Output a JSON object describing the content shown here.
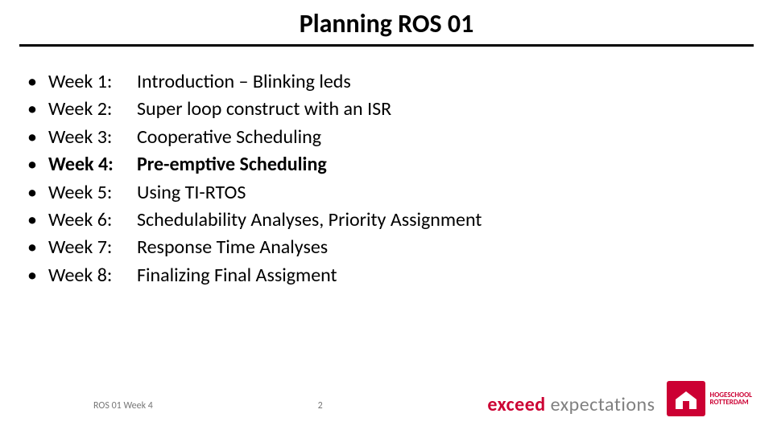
{
  "title": "Planning ROS 01",
  "weeks": [
    {
      "label": "Week 1:",
      "desc": "Introduction – Blinking leds",
      "bold": false
    },
    {
      "label": "Week 2:",
      "desc": "Super loop construct with an ISR",
      "bold": false
    },
    {
      "label": "Week 3:",
      "desc": "Cooperative Scheduling",
      "bold": false
    },
    {
      "label": "Week 4:",
      "desc": "Pre-emptive Scheduling",
      "bold": true
    },
    {
      "label": "Week 5:",
      "desc": "Using TI-RTOS",
      "bold": false
    },
    {
      "label": "Week 6:",
      "desc": "Schedulability Analyses, Priority Assignment",
      "bold": false
    },
    {
      "label": "Week 7:",
      "desc": "Response Time Analyses",
      "bold": false
    },
    {
      "label": "Week 8:",
      "desc": "Finalizing Final Assigment",
      "bold": false
    }
  ],
  "footer": {
    "left": "ROS 01 Week 4",
    "page": "2"
  },
  "brand": {
    "word1": "exceed",
    "word2": "expectations",
    "school1": "HOGESCHOOL",
    "school2": "ROTTERDAM"
  },
  "colors": {
    "accent": "#cc0033",
    "text": "#000000",
    "muted": "#808080",
    "bg": "#ffffff",
    "divider": "#000000"
  },
  "bullet": "•",
  "typography": {
    "title_fontsize": 32,
    "body_fontsize": 24,
    "footer_fontsize": 12,
    "brand_fontsize": 24
  }
}
